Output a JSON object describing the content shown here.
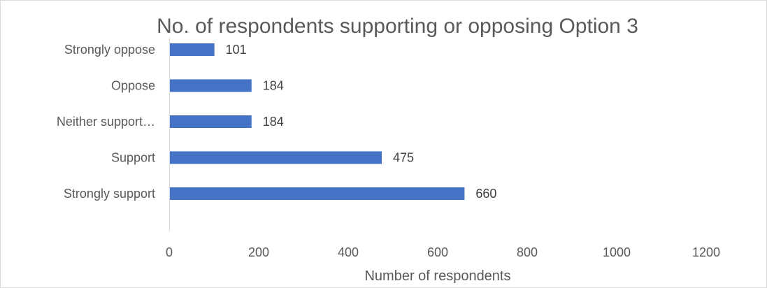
{
  "chart_data": {
    "type": "bar",
    "orientation": "horizontal",
    "title": "No. of respondents supporting or opposing Option 3",
    "xlabel": "Number of respondents",
    "ylabel": "",
    "categories": [
      "Strongly oppose",
      "Oppose",
      "Neither support…",
      "Support",
      "Strongly support"
    ],
    "values": [
      101,
      184,
      184,
      475,
      660
    ],
    "xlim": [
      0,
      1200
    ],
    "xticks": [
      "0",
      "200",
      "400",
      "600",
      "800",
      "1000",
      "1200"
    ],
    "bar_color": "#4472c4",
    "grid": false,
    "legend": "none"
  }
}
